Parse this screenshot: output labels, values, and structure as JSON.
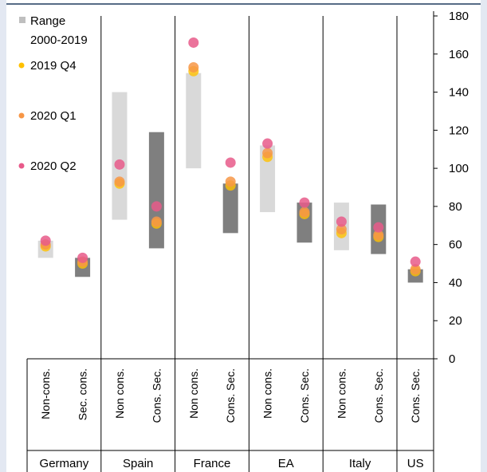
{
  "chart_data": {
    "type": "scatter",
    "title": "",
    "xlabel": "",
    "ylabel": "",
    "ylim": [
      0,
      180
    ],
    "yticks": [
      0,
      20,
      40,
      60,
      80,
      100,
      120,
      140,
      160,
      180
    ],
    "y_axis_position": "right",
    "legend_position": "top-left",
    "grid": false,
    "groups": [
      {
        "label": "Germany",
        "categories": [
          "Non-cons.",
          "Sec. cons."
        ]
      },
      {
        "label": "Spain",
        "categories": [
          "Non cons.",
          "Cons. Sec."
        ]
      },
      {
        "label": "France",
        "categories": [
          "Non cons.",
          "Cons. Sec."
        ]
      },
      {
        "label": "EA",
        "categories": [
          "Non cons.",
          "Cons. Sec."
        ]
      },
      {
        "label": "Italy",
        "categories": [
          "Non cons.",
          "Cons. Sec."
        ]
      },
      {
        "label": "US",
        "categories": [
          "Cons. Sec."
        ]
      }
    ],
    "range_series": {
      "name": "Range 2000-2019",
      "colors": {
        "non_consolidated": "#d9d9d9",
        "consolidated": "#7f7f7f"
      },
      "values": [
        [
          53,
          62
        ],
        [
          43,
          53
        ],
        [
          73,
          140
        ],
        [
          58,
          119
        ],
        [
          100,
          150
        ],
        [
          66,
          92
        ],
        [
          77,
          112
        ],
        [
          61,
          82
        ],
        [
          57,
          82
        ],
        [
          55,
          81
        ],
        [
          40,
          47
        ]
      ]
    },
    "series": [
      {
        "name": "2019 Q4",
        "color": "#ffc000",
        "values": [
          59,
          50,
          92,
          71,
          151,
          91,
          106,
          76,
          66,
          64,
          46
        ]
      },
      {
        "name": "2020 Q1",
        "color": "#f79646",
        "values": [
          60,
          51,
          93,
          72,
          153,
          93,
          108,
          77,
          68,
          65,
          47
        ]
      },
      {
        "name": "2020 Q2",
        "color": "#e85a8a",
        "values": [
          62,
          53,
          102,
          80,
          166,
          103,
          113,
          82,
          72,
          69,
          51
        ]
      }
    ],
    "legend_labels": [
      "Range",
      "2000-2019",
      "2019 Q4",
      "2020 Q1",
      "2020 Q2"
    ]
  }
}
